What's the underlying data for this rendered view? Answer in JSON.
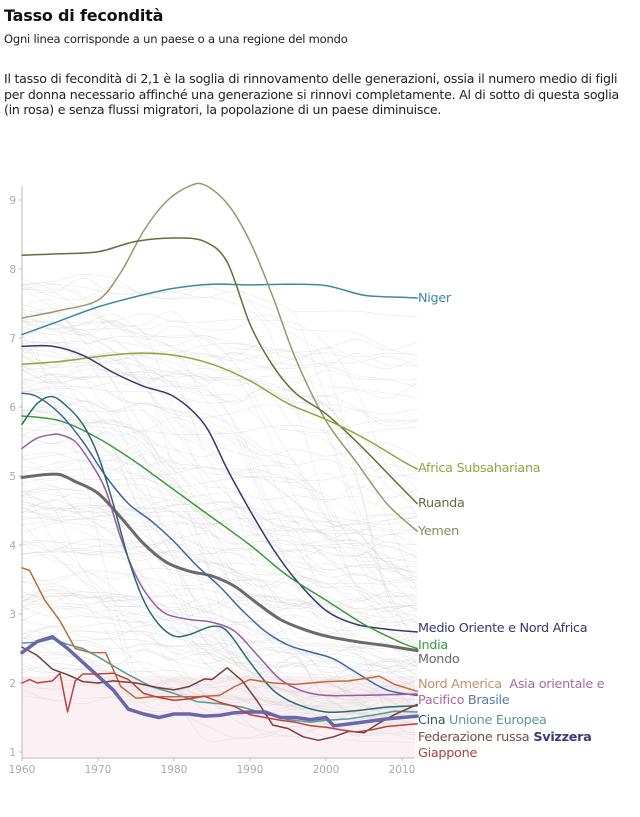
{
  "header": {
    "title": "Tasso di fecondità",
    "subtitle": "Ogni linea corrisponde a un paese o a una regione del mondo",
    "description": "Il tasso di fecondità di 2,1 è la soglia di rinnovamento delle generazioni, ossia il numero medio di figli per donna necessario affinché una generazione si rinnovi completamente. Al di sotto di questa soglia (in rosa) e senza flussi migratori, la popolazione di un paese diminuisce."
  },
  "chart_data": {
    "type": "line",
    "title": "Tasso di fecondità",
    "xlabel": "",
    "ylabel": "",
    "xlim": [
      1960,
      2012
    ],
    "ylim": [
      0.9,
      9.3
    ],
    "x_ticks": [
      1960,
      1970,
      1980,
      1990,
      2000,
      2010
    ],
    "y_ticks": [
      1,
      2,
      3,
      4,
      5,
      6,
      7,
      8,
      9
    ],
    "replacement_threshold": 2.1,
    "threshold_fill_color": "#fbf1f5",
    "background_lines_color": "#d6d6d6",
    "background_lines_note": "Ogni linea grigia corrisponde a un paese",
    "grid": false,
    "legend": "inline labels at right end of lines",
    "series": [
      {
        "name": "Niger",
        "color": "#3a8a9c",
        "width": 1.5,
        "x": [
          1960,
          1965,
          1970,
          1975,
          1980,
          1985,
          1990,
          1995,
          2000,
          2005,
          2010,
          2012
        ],
        "y": [
          7.05,
          7.25,
          7.45,
          7.6,
          7.72,
          7.78,
          7.77,
          7.78,
          7.76,
          7.62,
          7.59,
          7.58
        ]
      },
      {
        "name": "Yemen",
        "color": "#97986a",
        "width": 1.5,
        "x": [
          1960,
          1965,
          1970,
          1973,
          1976,
          1979,
          1982,
          1984,
          1987,
          1990,
          1993,
          1996,
          2000,
          2004,
          2008,
          2012
        ],
        "y": [
          7.29,
          7.4,
          7.55,
          7.95,
          8.55,
          8.98,
          9.2,
          9.22,
          8.95,
          8.4,
          7.6,
          6.7,
          5.8,
          5.2,
          4.6,
          4.2
        ]
      },
      {
        "name": "Ruanda",
        "color": "#6a6b37",
        "width": 1.5,
        "x": [
          1960,
          1965,
          1970,
          1975,
          1980,
          1984,
          1987,
          1990,
          1993,
          1996,
          2000,
          2004,
          2008,
          2012
        ],
        "y": [
          8.2,
          8.22,
          8.25,
          8.4,
          8.45,
          8.4,
          8.1,
          7.2,
          6.6,
          6.2,
          5.9,
          5.5,
          5.05,
          4.6
        ]
      },
      {
        "name": "Africa Subsahariana",
        "color": "#8ea63d",
        "width": 1.5,
        "x": [
          1960,
          1965,
          1970,
          1975,
          1980,
          1985,
          1990,
          1995,
          2000,
          2005,
          2010,
          2012
        ],
        "y": [
          6.62,
          6.66,
          6.73,
          6.78,
          6.75,
          6.62,
          6.38,
          6.05,
          5.82,
          5.55,
          5.22,
          5.1
        ]
      },
      {
        "name": "Medio Oriente e Nord Africa",
        "color": "#343872",
        "width": 1.5,
        "x": [
          1960,
          1964,
          1968,
          1972,
          1976,
          1980,
          1984,
          1987,
          1990,
          1993,
          1996,
          2000,
          2004,
          2008,
          2012
        ],
        "y": [
          6.88,
          6.88,
          6.75,
          6.5,
          6.3,
          6.15,
          5.75,
          5.1,
          4.5,
          3.95,
          3.5,
          3.05,
          2.85,
          2.78,
          2.74
        ]
      },
      {
        "name": "India",
        "color": "#3a9a3a",
        "width": 1.5,
        "x": [
          1960,
          1965,
          1970,
          1975,
          1980,
          1985,
          1990,
          1995,
          2000,
          2005,
          2010,
          2012
        ],
        "y": [
          5.87,
          5.8,
          5.55,
          5.2,
          4.8,
          4.4,
          4.0,
          3.55,
          3.2,
          2.85,
          2.58,
          2.5
        ]
      },
      {
        "name": "Mondo",
        "color": "#6a6a6a",
        "width": 3,
        "x": [
          1960,
          1963,
          1965,
          1967,
          1970,
          1973,
          1976,
          1979,
          1982,
          1985,
          1988,
          1991,
          1994,
          1997,
          2000,
          2004,
          2008,
          2012
        ],
        "y": [
          4.98,
          5.02,
          5.02,
          4.92,
          4.75,
          4.4,
          4.02,
          3.75,
          3.62,
          3.55,
          3.4,
          3.15,
          2.92,
          2.78,
          2.68,
          2.6,
          2.54,
          2.47
        ]
      },
      {
        "name": "Brasile",
        "color": "#3c65a6",
        "width": 1.5,
        "x": [
          1960,
          1962,
          1965,
          1968,
          1971,
          1974,
          1977,
          1980,
          1983,
          1986,
          1989,
          1992,
          1995,
          1998,
          2001,
          2004,
          2008,
          2012
        ],
        "y": [
          6.2,
          6.15,
          5.9,
          5.5,
          5.0,
          4.6,
          4.35,
          4.05,
          3.7,
          3.4,
          3.05,
          2.75,
          2.55,
          2.45,
          2.35,
          2.15,
          1.9,
          1.82
        ]
      },
      {
        "name": "Asia orientale e Pacifico",
        "color": "#9a5aa8",
        "width": 1.5,
        "x": [
          1960,
          1962,
          1964,
          1965,
          1967,
          1969,
          1971,
          1973,
          1975,
          1977,
          1979,
          1982,
          1985,
          1988,
          1991,
          1994,
          1997,
          2000,
          2004,
          2008,
          2012
        ],
        "y": [
          5.4,
          5.55,
          5.6,
          5.6,
          5.5,
          5.2,
          4.8,
          4.1,
          3.55,
          3.2,
          3.0,
          2.92,
          2.88,
          2.75,
          2.4,
          2.05,
          1.88,
          1.82,
          1.82,
          1.83,
          1.84
        ]
      },
      {
        "name": "Cina",
        "color": "#2a6a6a",
        "width": 1.5,
        "x": [
          1960,
          1962,
          1964,
          1966,
          1968,
          1970,
          1972,
          1974,
          1976,
          1978,
          1980,
          1982,
          1985,
          1987,
          1990,
          1993,
          1996,
          2000,
          2004,
          2008,
          2012
        ],
        "y": [
          5.75,
          6.05,
          6.15,
          6.0,
          5.75,
          5.3,
          4.6,
          3.8,
          3.2,
          2.85,
          2.68,
          2.7,
          2.82,
          2.75,
          2.3,
          1.9,
          1.7,
          1.58,
          1.6,
          1.65,
          1.67
        ]
      },
      {
        "name": "Nord America",
        "color": "#c06a3a",
        "width": 1.5,
        "x": [
          1960,
          1961,
          1963,
          1965,
          1967,
          1969,
          1971,
          1973,
          1975,
          1977,
          1980,
          1983,
          1986,
          1988,
          1990,
          1993,
          1996,
          2000,
          2003,
          2006,
          2007,
          2009,
          2012
        ],
        "y": [
          3.67,
          3.63,
          3.2,
          2.9,
          2.5,
          2.44,
          2.44,
          1.95,
          1.78,
          1.8,
          1.8,
          1.8,
          1.82,
          1.95,
          2.05,
          2.0,
          1.98,
          2.02,
          2.03,
          2.08,
          2.1,
          1.98,
          1.88
        ]
      },
      {
        "name": "Unione Europea",
        "color": "#5a9a94",
        "width": 1.5,
        "x": [
          1960,
          1962,
          1964,
          1966,
          1968,
          1970,
          1972,
          1974,
          1977,
          1980,
          1983,
          1986,
          1989,
          1992,
          1995,
          1998,
          2000,
          2003,
          2006,
          2009,
          2012
        ],
        "y": [
          2.58,
          2.59,
          2.64,
          2.56,
          2.5,
          2.38,
          2.25,
          2.12,
          1.95,
          1.85,
          1.73,
          1.7,
          1.65,
          1.55,
          1.47,
          1.43,
          1.46,
          1.48,
          1.53,
          1.59,
          1.58
        ]
      },
      {
        "name": "Federazione russa",
        "color": "#7a3a3a",
        "width": 1.5,
        "x": [
          1960,
          1962,
          1964,
          1966,
          1968,
          1970,
          1972,
          1975,
          1978,
          1980,
          1982,
          1984,
          1985,
          1987,
          1989,
          1991,
          1993,
          1995,
          1997,
          1999,
          2001,
          2003,
          2005,
          2007,
          2009,
          2012
        ],
        "y": [
          2.52,
          2.4,
          2.2,
          2.12,
          2.02,
          2.0,
          2.03,
          2.0,
          1.93,
          1.9,
          1.95,
          2.06,
          2.05,
          2.22,
          2.03,
          1.73,
          1.39,
          1.34,
          1.22,
          1.17,
          1.22,
          1.3,
          1.28,
          1.42,
          1.54,
          1.69
        ]
      },
      {
        "name": "Svizzera",
        "color": "#6a66aa",
        "width": 3.5,
        "x": [
          1960,
          1962,
          1964,
          1966,
          1968,
          1970,
          1972,
          1974,
          1976,
          1978,
          1980,
          1982,
          1984,
          1986,
          1988,
          1990,
          1992,
          1994,
          1996,
          1998,
          2000,
          2001,
          2004,
          2008,
          2012
        ],
        "y": [
          2.44,
          2.6,
          2.67,
          2.5,
          2.3,
          2.1,
          1.9,
          1.62,
          1.55,
          1.5,
          1.55,
          1.55,
          1.52,
          1.53,
          1.57,
          1.58,
          1.58,
          1.5,
          1.5,
          1.47,
          1.5,
          1.38,
          1.42,
          1.48,
          1.52
        ]
      },
      {
        "name": "Giappone",
        "color": "#c0403a",
        "width": 1.5,
        "x": [
          1960,
          1961,
          1962,
          1964,
          1965,
          1966,
          1967,
          1968,
          1970,
          1972,
          1974,
          1976,
          1978,
          1980,
          1982,
          1984,
          1986,
          1988,
          1990,
          1992,
          1994,
          1996,
          1998,
          2000,
          2002,
          2004,
          2006,
          2008,
          2010,
          2012
        ],
        "y": [
          2.0,
          2.05,
          2.0,
          2.03,
          2.14,
          1.58,
          2.03,
          2.13,
          2.13,
          2.14,
          2.05,
          1.85,
          1.79,
          1.75,
          1.77,
          1.81,
          1.72,
          1.66,
          1.54,
          1.5,
          1.46,
          1.43,
          1.38,
          1.36,
          1.32,
          1.29,
          1.32,
          1.37,
          1.39,
          1.41
        ]
      }
    ],
    "labels": [
      {
        "series": "Niger",
        "text": "Niger",
        "row": 297
      },
      {
        "series": "Africa Subsahariana",
        "text": "Africa Subsahariana",
        "row": 467
      },
      {
        "series": "Ruanda",
        "text": "Ruanda",
        "row": 502
      },
      {
        "series": "Yemen",
        "text": "Yemen",
        "row": 530
      },
      {
        "series": "Medio Oriente e Nord Africa",
        "text": "Medio Oriente e Nord Africa",
        "row": 627
      },
      {
        "series": "India",
        "text": "India",
        "row": 644
      },
      {
        "series": "Mondo",
        "text": "Mondo",
        "row": 658
      }
    ]
  },
  "bottom_labels": {
    "line1": [
      {
        "text": "Nord America",
        "color": "#c4906a"
      },
      {
        "text": "Asia orientale e",
        "color": "#a86aa8"
      }
    ],
    "line2": [
      {
        "text": "Pacifico",
        "color": "#a86aa8"
      },
      {
        "text": "Brasile",
        "color": "#5a7aaa"
      }
    ],
    "line3": [
      {
        "text": "Cina",
        "color": "#2a5a5a"
      },
      {
        "text": "Unione Europea",
        "color": "#5a9a94"
      }
    ],
    "line4": [
      {
        "text": "Federazione russa",
        "color": "#7a4a4a"
      },
      {
        "text": "Svizzera",
        "color": "#3a3a7a",
        "bold": true
      }
    ],
    "line5": [
      {
        "text": "Giappone",
        "color": "#b0403a"
      }
    ]
  },
  "label_colors": {
    "Niger": "#3a8a9c",
    "Africa Subsahariana": "#8ea63d",
    "Ruanda": "#6a6b37",
    "Yemen": "#8a8b5a",
    "Medio Oriente e Nord Africa": "#343872",
    "India": "#3a9a3a",
    "Mondo": "#6a6a6a"
  }
}
